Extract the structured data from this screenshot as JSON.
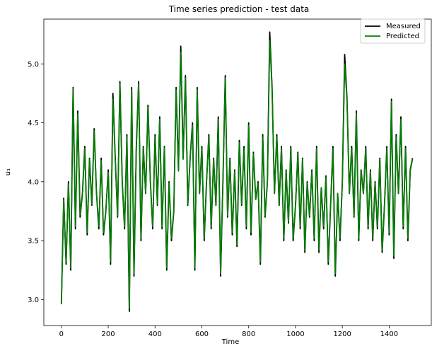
{
  "chart_data": {
    "type": "line",
    "title": "Time series prediction - test data",
    "xlabel": "Time",
    "ylabel": "u₁",
    "xlim": [
      -75,
      1580
    ],
    "ylim": [
      2.78,
      5.38
    ],
    "xticks": [
      0,
      200,
      400,
      600,
      800,
      1000,
      1200,
      1400
    ],
    "xtick_labels": [
      "0",
      "200",
      "400",
      "600",
      "800",
      "1000",
      "1200",
      "1400"
    ],
    "yticks": [
      3.0,
      3.5,
      4.0,
      4.5,
      5.0
    ],
    "ytick_labels": [
      "3.0",
      "3.5",
      "4.0",
      "4.5",
      "5.0"
    ],
    "grid": false,
    "legend_position": "top-right",
    "series": [
      {
        "name": "Measured",
        "color": "#000000",
        "x": [
          0,
          10,
          20,
          30,
          40,
          50,
          60,
          70,
          80,
          90,
          100,
          110,
          120,
          130,
          140,
          150,
          160,
          170,
          180,
          190,
          200,
          210,
          220,
          230,
          240,
          250,
          260,
          270,
          280,
          290,
          300,
          310,
          320,
          330,
          340,
          350,
          360,
          370,
          380,
          390,
          400,
          410,
          420,
          430,
          440,
          450,
          460,
          470,
          480,
          490,
          500,
          510,
          520,
          530,
          540,
          550,
          560,
          570,
          580,
          590,
          600,
          610,
          620,
          630,
          640,
          650,
          660,
          670,
          680,
          690,
          700,
          710,
          720,
          730,
          740,
          750,
          760,
          770,
          780,
          790,
          800,
          810,
          820,
          830,
          840,
          850,
          860,
          870,
          880,
          890,
          900,
          910,
          920,
          930,
          940,
          950,
          960,
          970,
          980,
          990,
          1000,
          1010,
          1020,
          1030,
          1040,
          1050,
          1060,
          1070,
          1080,
          1090,
          1100,
          1110,
          1120,
          1130,
          1140,
          1150,
          1160,
          1170,
          1180,
          1190,
          1200,
          1210,
          1220,
          1230,
          1240,
          1250,
          1260,
          1270,
          1280,
          1290,
          1300,
          1310,
          1320,
          1330,
          1340,
          1350,
          1360,
          1370,
          1380,
          1390,
          1400,
          1410,
          1420,
          1430,
          1440,
          1450,
          1460,
          1470,
          1480,
          1490,
          1500
        ],
        "values": [
          2.96,
          3.86,
          3.3,
          4.0,
          3.25,
          4.8,
          3.6,
          4.6,
          3.7,
          3.9,
          4.3,
          3.55,
          4.2,
          3.8,
          4.45,
          3.9,
          3.6,
          4.2,
          3.55,
          3.75,
          4.1,
          3.3,
          4.75,
          4.2,
          3.7,
          4.85,
          4.0,
          3.6,
          4.4,
          2.9,
          4.8,
          3.2,
          4.3,
          4.85,
          3.5,
          4.3,
          3.9,
          4.65,
          4.0,
          3.6,
          4.4,
          3.8,
          4.55,
          3.6,
          4.3,
          3.25,
          4.0,
          3.5,
          3.75,
          4.8,
          4.1,
          5.15,
          4.2,
          4.9,
          3.8,
          4.2,
          4.5,
          3.25,
          4.8,
          3.9,
          4.3,
          3.5,
          4.0,
          4.4,
          3.6,
          4.2,
          3.8,
          4.55,
          3.2,
          4.0,
          4.9,
          3.7,
          4.2,
          3.55,
          4.1,
          3.45,
          4.35,
          3.8,
          4.3,
          3.6,
          4.5,
          3.55,
          4.25,
          3.85,
          4.0,
          3.3,
          4.4,
          3.7,
          4.0,
          5.27,
          4.8,
          3.9,
          4.4,
          3.8,
          4.3,
          3.5,
          4.1,
          3.65,
          4.3,
          3.5,
          3.8,
          4.25,
          3.6,
          4.2,
          3.4,
          4.0,
          3.7,
          4.1,
          3.5,
          4.3,
          3.4,
          3.95,
          3.6,
          4.05,
          3.3,
          3.8,
          4.3,
          3.2,
          3.9,
          3.5,
          4.0,
          5.08,
          4.7,
          3.9,
          4.3,
          3.7,
          4.6,
          3.5,
          4.1,
          3.9,
          4.3,
          3.6,
          4.1,
          3.5,
          4.0,
          3.6,
          4.2,
          3.4,
          3.8,
          4.3,
          3.55,
          4.7,
          3.35,
          4.4,
          3.9,
          4.55,
          3.6,
          4.3,
          3.5,
          4.1,
          4.2
        ]
      },
      {
        "name": "Predicted",
        "color": "#008000",
        "x": [
          0,
          10,
          20,
          30,
          40,
          50,
          60,
          70,
          80,
          90,
          100,
          110,
          120,
          130,
          140,
          150,
          160,
          170,
          180,
          190,
          200,
          210,
          220,
          230,
          240,
          250,
          260,
          270,
          280,
          290,
          300,
          310,
          320,
          330,
          340,
          350,
          360,
          370,
          380,
          390,
          400,
          410,
          420,
          430,
          440,
          450,
          460,
          470,
          480,
          490,
          500,
          510,
          520,
          530,
          540,
          550,
          560,
          570,
          580,
          590,
          600,
          610,
          620,
          630,
          640,
          650,
          660,
          670,
          680,
          690,
          700,
          710,
          720,
          730,
          740,
          750,
          760,
          770,
          780,
          790,
          800,
          810,
          820,
          830,
          840,
          850,
          860,
          870,
          880,
          890,
          900,
          910,
          920,
          930,
          940,
          950,
          960,
          970,
          980,
          990,
          1000,
          1010,
          1020,
          1030,
          1040,
          1050,
          1060,
          1070,
          1080,
          1090,
          1100,
          1110,
          1120,
          1130,
          1140,
          1150,
          1160,
          1170,
          1180,
          1190,
          1200,
          1210,
          1220,
          1230,
          1240,
          1250,
          1260,
          1270,
          1280,
          1290,
          1300,
          1310,
          1320,
          1330,
          1340,
          1350,
          1360,
          1370,
          1380,
          1390,
          1400,
          1410,
          1420,
          1430,
          1440,
          1450,
          1460,
          1470,
          1480,
          1490,
          1500
        ],
        "values": [
          2.96,
          3.85,
          3.32,
          3.98,
          3.27,
          4.79,
          3.62,
          4.58,
          3.72,
          3.88,
          4.28,
          3.57,
          4.19,
          3.81,
          4.43,
          3.9,
          3.62,
          4.18,
          3.57,
          3.76,
          4.08,
          3.32,
          4.7,
          4.19,
          3.71,
          4.83,
          3.99,
          3.62,
          4.38,
          2.93,
          4.78,
          3.22,
          4.28,
          4.83,
          3.52,
          4.29,
          3.9,
          4.63,
          3.99,
          3.62,
          4.38,
          3.81,
          4.53,
          3.62,
          4.29,
          3.27,
          3.99,
          3.52,
          3.76,
          4.78,
          4.09,
          5.1,
          4.19,
          4.88,
          3.81,
          4.19,
          4.48,
          3.27,
          4.78,
          3.9,
          4.28,
          3.52,
          3.99,
          4.38,
          3.62,
          4.19,
          3.81,
          4.53,
          3.22,
          3.99,
          4.88,
          3.71,
          4.19,
          3.57,
          4.09,
          3.47,
          4.33,
          3.81,
          4.28,
          3.62,
          4.48,
          3.57,
          4.24,
          3.85,
          3.99,
          3.32,
          4.38,
          3.71,
          3.99,
          5.2,
          4.78,
          3.9,
          4.38,
          3.81,
          4.28,
          3.52,
          4.09,
          3.66,
          4.28,
          3.52,
          3.81,
          4.24,
          3.62,
          4.19,
          3.42,
          3.99,
          3.71,
          4.09,
          3.52,
          4.28,
          3.42,
          3.95,
          3.62,
          4.04,
          3.32,
          3.81,
          4.28,
          3.22,
          3.9,
          3.52,
          3.99,
          5.0,
          4.68,
          3.9,
          4.28,
          3.71,
          4.58,
          3.52,
          4.09,
          3.9,
          4.28,
          3.62,
          4.09,
          3.52,
          3.99,
          3.62,
          4.19,
          3.42,
          3.81,
          4.28,
          3.57,
          4.68,
          3.37,
          4.38,
          3.9,
          4.53,
          3.62,
          4.28,
          3.52,
          4.09,
          4.19
        ]
      }
    ]
  }
}
